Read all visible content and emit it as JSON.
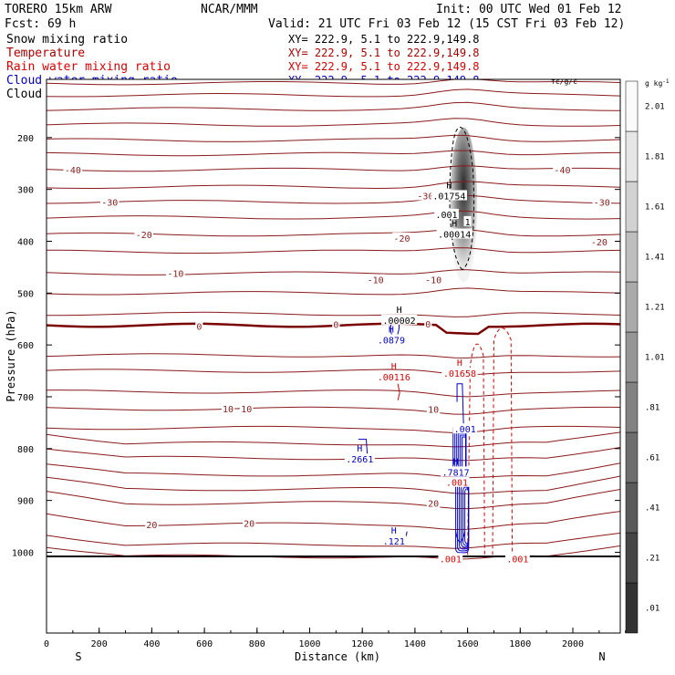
{
  "header": {
    "model": "TORERO  15km ARW",
    "org": "NCAR/MMM",
    "init": "Init: 00 UTC Wed 01 Feb 12",
    "fcst": "Fcst:   69 h",
    "valid": "Valid: 21 UTC Fri 03 Feb 12 (15 CST Fri 03 Feb 12)"
  },
  "legend": [
    {
      "name": "Snow mixing ratio",
      "color": "#000000",
      "xy": "XY= 222.9,  5.1 to 222.9,149.8"
    },
    {
      "name": "Temperature",
      "color": "#b00000",
      "xy": "XY= 222.9,  5.1 to 222.9,149.8"
    },
    {
      "name": "Rain water mixing ratio",
      "color": "#e00000",
      "xy": "XY= 222.9,  5.1 to 222.9,149.8"
    },
    {
      "name": "Cloud water mixing ratio",
      "color": "#0000cc",
      "xy": "XY= 222.9,  5.1 to 222.9,149.8"
    },
    {
      "name": "Cloud ice mixing ratio",
      "color": "#000000",
      "xy": "XY= 222.9,  5.1 to 222.9,149.8"
    }
  ],
  "chart_data": {
    "type": "contour-cross-section",
    "xlabel": "Distance (km)",
    "ylabel": "Pressure (hPa)",
    "xlim": [
      0,
      2200
    ],
    "ylim": [
      1050,
      100
    ],
    "x_ticks": [
      0,
      200,
      400,
      600,
      800,
      1000,
      1200,
      1400,
      1600,
      1800,
      2000
    ],
    "y_ticks": [
      200,
      300,
      400,
      500,
      600,
      700,
      800,
      900,
      1000
    ],
    "end_labels": {
      "left": "S",
      "right": "N"
    },
    "colorbar": {
      "unit": "g kg",
      "unit_exp": "-1",
      "labels": [
        ".01",
        ".21",
        ".41",
        ".61",
        ".81",
        "1.01",
        "1.21",
        "1.41",
        "1.61",
        "1.81",
        "2.01"
      ]
    },
    "temperature_contour_labels": [
      {
        "x": 100,
        "p": 262,
        "text": "-40"
      },
      {
        "x": 1960,
        "p": 262,
        "text": "-40"
      },
      {
        "x": 240,
        "p": 324,
        "text": "-30"
      },
      {
        "x": 1440,
        "p": 312,
        "text": "-30"
      },
      {
        "x": 2110,
        "p": 324,
        "text": "-30"
      },
      {
        "x": 370,
        "p": 387,
        "text": "-20"
      },
      {
        "x": 1350,
        "p": 394,
        "text": "-20"
      },
      {
        "x": 2100,
        "p": 401,
        "text": "-20"
      },
      {
        "x": 490,
        "p": 462,
        "text": "-10"
      },
      {
        "x": 1250,
        "p": 474,
        "text": "-10"
      },
      {
        "x": 1470,
        "p": 474,
        "text": "-10"
      },
      {
        "x": 580,
        "p": 564,
        "text": "0"
      },
      {
        "x": 1100,
        "p": 560,
        "text": "0"
      },
      {
        "x": 1450,
        "p": 559,
        "text": "0"
      },
      {
        "x": 690,
        "p": 723,
        "text": "10"
      },
      {
        "x": 760,
        "p": 723,
        "text": "10"
      },
      {
        "x": 1470,
        "p": 724,
        "text": "10"
      },
      {
        "x": 400,
        "p": 946,
        "text": "20"
      },
      {
        "x": 770,
        "p": 944,
        "text": "20"
      },
      {
        "x": 1470,
        "p": 905,
        "text": "20"
      }
    ],
    "max_labels": [
      {
        "x": 1530,
        "p": 312,
        "text": ".01754",
        "color": "#000000"
      },
      {
        "x": 1550,
        "p": 386,
        "text": ".00014",
        "color": "#000000"
      },
      {
        "x": 1340,
        "p": 552,
        "text": ".00002",
        "color": "#000000"
      },
      {
        "x": 1310,
        "p": 590,
        "text": ".0879",
        "color": "#0000cc"
      },
      {
        "x": 1320,
        "p": 661,
        "text": ".00116",
        "color": "#e00000"
      },
      {
        "x": 1570,
        "p": 654,
        "text": ".01658",
        "color": "#e00000"
      },
      {
        "x": 1190,
        "p": 820,
        "text": ".2661",
        "color": "#0000cc"
      },
      {
        "x": 1555,
        "p": 845,
        "text": ".7817",
        "color": "#0000cc"
      },
      {
        "x": 1320,
        "p": 978,
        "text": ".121",
        "color": "#0000cc"
      }
    ],
    "contour_value_labels": [
      {
        "x": 1520,
        "p": 348,
        "text": ".001",
        "color": "#000000"
      },
      {
        "x": 1600,
        "p": 362,
        "text": "1",
        "color": "#000000"
      },
      {
        "x": 1590,
        "p": 762,
        "text": ".001",
        "color": "#0000cc"
      },
      {
        "x": 1560,
        "p": 865,
        "text": ".001",
        "color": "#e00000"
      },
      {
        "x": 1535,
        "p": 1012,
        "text": ".001",
        "color": "#e00000"
      },
      {
        "x": 1790,
        "p": 1012,
        "text": ".001",
        "color": "#e00000"
      }
    ],
    "overlap_box_label": "fc/g/c"
  }
}
